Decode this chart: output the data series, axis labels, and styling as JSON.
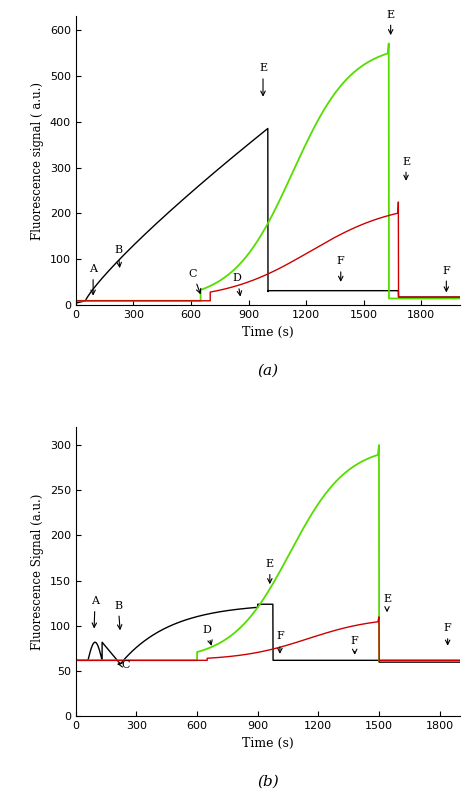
{
  "panel_a": {
    "ylabel": "Fluorescence signal ( a.u.)",
    "xlabel": "Time (s)",
    "ylim": [
      0,
      630
    ],
    "xlim": [
      0,
      2000
    ],
    "yticks": [
      0,
      100,
      200,
      300,
      400,
      500,
      600
    ],
    "xticks": [
      0,
      300,
      600,
      900,
      1200,
      1500,
      1800
    ],
    "label": "(a)"
  },
  "panel_b": {
    "ylabel": "Fluorescence Signal (a.u.)",
    "xlabel": "Time (s)",
    "ylim": [
      0,
      320
    ],
    "xlim": [
      0,
      1900
    ],
    "yticks": [
      0,
      50,
      100,
      150,
      200,
      250,
      300
    ],
    "xticks": [
      0,
      300,
      600,
      900,
      1200,
      1500,
      1800
    ],
    "label": "(b)"
  },
  "colors": {
    "black": "#000000",
    "green": "#55dd00",
    "red": "#cc0000",
    "bg": "#ffffff"
  }
}
